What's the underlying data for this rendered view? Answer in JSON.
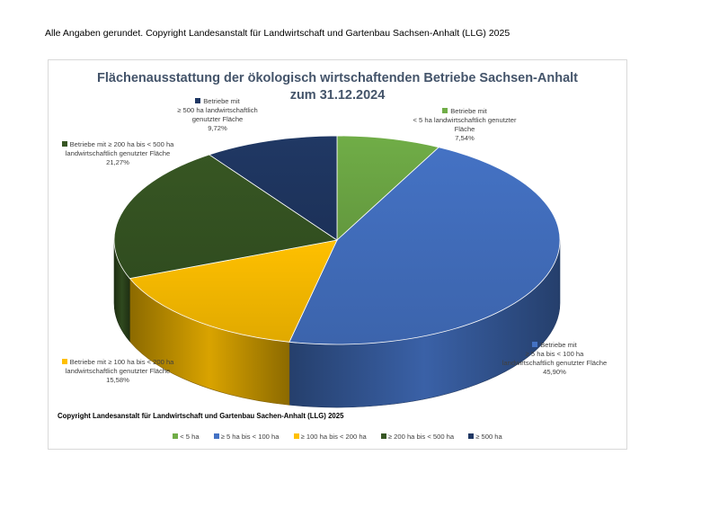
{
  "note": "Alle Angaben gerundet. Copyright Landesanstalt für Landwirtschaft und Gartenbau Sachsen-Anhalt (LLG) 2025",
  "copyright_in_chart": "Copyright Landesanstalt für Landwirtschaft und Gartenbau Sachen-Anhalt (LLG) 2025",
  "chart_data": {
    "type": "pie",
    "title_line1": "Flächenausstattung der ökologisch wirtschaftenden Betriebe Sachsen-Anhalt",
    "title_line2": "zum 31.12.2024",
    "legend_position": "bottom",
    "slices": [
      {
        "legend": "< 5 ha",
        "label_lines": [
          "Betriebe mit",
          "< 5 ha landwirtschaftlich genutzter",
          "Fläche"
        ],
        "value_text": "7,54%",
        "value": 7.54,
        "color": "#70ad47"
      },
      {
        "legend": "≥ 5 ha bis < 100 ha",
        "label_lines": [
          "Betriebe mit",
          "≥ 5 ha bis < 100 ha",
          "landwirtschaftlich genutzter Fläche"
        ],
        "value_text": "45,90%",
        "value": 45.9,
        "color": "#4472c4"
      },
      {
        "legend": "≥ 100 ha bis < 200 ha",
        "label_lines": [
          "Betriebe mit ≥ 100 ha bis < 200 ha",
          "landwirtschaftlich genutzter Fläche"
        ],
        "value_text": "15,58%",
        "value": 15.58,
        "color": "#ffc000"
      },
      {
        "legend": "≥ 200 ha bis < 500 ha",
        "label_lines": [
          "Betriebe mit ≥ 200 ha bis < 500 ha",
          "landwirtschaftlich genutzter Fläche"
        ],
        "value_text": "21,27%",
        "value": 21.27,
        "color": "#375623"
      },
      {
        "legend": "≥ 500 ha",
        "label_lines": [
          "Betriebe mit",
          "≥ 500 ha landwirtschaftlich",
          "genutzter Fläche"
        ],
        "value_text": "9,72%",
        "value": 9.72,
        "color": "#203864"
      }
    ]
  }
}
